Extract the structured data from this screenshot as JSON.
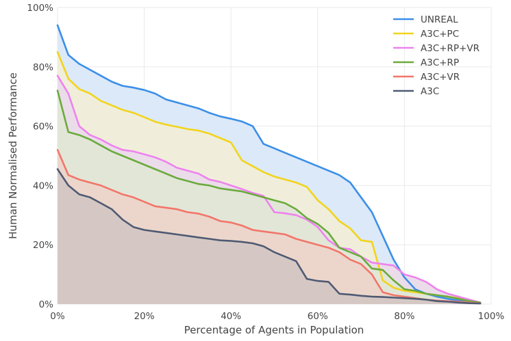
{
  "chart_data": {
    "type": "area",
    "title": "",
    "xlabel": "Percentage of Agents in Population",
    "ylabel": "Human Normalised Performance",
    "xlim": [
      0,
      100
    ],
    "ylim": [
      0,
      100
    ],
    "xticks": [
      "0%",
      "20%",
      "40%",
      "60%",
      "80%",
      "100%"
    ],
    "yticks": [
      "0%",
      "20%",
      "40%",
      "60%",
      "80%",
      "100%"
    ],
    "grid": true,
    "legend_position": "top-right",
    "series": [
      {
        "name": "UNREAL",
        "color": "#3b8ee8",
        "fill": "#dbe9f8",
        "x": [
          0,
          2.5,
          5,
          7.5,
          10,
          12.5,
          15,
          17.5,
          20,
          22.5,
          25,
          27.5,
          30,
          32.5,
          35,
          37.5,
          40,
          42.5,
          45,
          47.5,
          50,
          52.5,
          55,
          57.5,
          60,
          62.5,
          65,
          67.5,
          70,
          72.5,
          75,
          77.5,
          80,
          82.5,
          85,
          87.5,
          90,
          92.5,
          95,
          97.5
        ],
        "y": [
          94,
          84,
          81,
          79,
          77,
          75,
          73.6,
          73,
          72.2,
          71,
          69,
          68,
          67,
          66,
          64.5,
          63.3,
          62.5,
          61.6,
          60,
          54,
          52.5,
          51,
          49.5,
          48,
          46.5,
          45,
          43.5,
          41,
          36,
          31,
          23,
          15,
          9,
          5,
          3.5,
          2.5,
          1.8,
          1.2,
          0.8,
          0.5
        ]
      },
      {
        "name": "A3C+PC",
        "color": "#f2d41c",
        "fill": "#f0eeda",
        "x": [
          0,
          2.5,
          5,
          7.5,
          10,
          12.5,
          15,
          17.5,
          20,
          22.5,
          25,
          27.5,
          30,
          32.5,
          35,
          37.5,
          40,
          42.5,
          45,
          47.5,
          50,
          52.5,
          55,
          57.5,
          60,
          62.5,
          65,
          67.5,
          70,
          72.5,
          75,
          77.5,
          80,
          82.5,
          85,
          87.5,
          90,
          92.5,
          95,
          97.5
        ],
        "y": [
          85,
          76,
          72.5,
          71,
          68.5,
          67,
          65.5,
          64.5,
          63,
          61.5,
          60.5,
          59.8,
          59,
          58.5,
          57.5,
          56,
          54.5,
          48.5,
          46.5,
          44.5,
          43,
          42,
          41,
          39.5,
          35,
          32,
          28,
          25.5,
          21.5,
          21,
          8,
          5.5,
          4.5,
          4,
          3.5,
          3,
          2.5,
          2,
          1.5,
          0.5
        ]
      },
      {
        "name": "A3C+RP+VR",
        "color": "#ee82ee",
        "fill": "#ebdcea",
        "x": [
          0,
          2.5,
          5,
          7.5,
          10,
          12.5,
          15,
          17.5,
          20,
          22.5,
          25,
          27.5,
          30,
          32.5,
          35,
          37.5,
          40,
          42.5,
          45,
          47.5,
          50,
          52.5,
          55,
          57.5,
          60,
          62.5,
          65,
          67.5,
          70,
          72.5,
          75,
          77.5,
          80,
          82.5,
          85,
          87.5,
          90,
          92.5,
          95,
          97.5
        ],
        "y": [
          77,
          71,
          60,
          57,
          55.5,
          53.5,
          52,
          51.5,
          50.5,
          49.5,
          48,
          46,
          45,
          44,
          42,
          41.2,
          40,
          38.8,
          37.5,
          36.5,
          31,
          30.6,
          30,
          28.5,
          26,
          21.5,
          19,
          18.5,
          16,
          14,
          13.5,
          13,
          10,
          9,
          7.5,
          5,
          3.5,
          2.5,
          1.5,
          0.5
        ]
      },
      {
        "name": "A3C+RP",
        "color": "#6aab3c",
        "fill": "#e2e6d7",
        "x": [
          0,
          2.5,
          5,
          7.5,
          10,
          12.5,
          15,
          17.5,
          20,
          22.5,
          25,
          27.5,
          30,
          32.5,
          35,
          37.5,
          40,
          42.5,
          45,
          47.5,
          50,
          52.5,
          55,
          57.5,
          60,
          62.5,
          65,
          67.5,
          70,
          72.5,
          75,
          77.5,
          80,
          82.5,
          85,
          87.5,
          90,
          92.5,
          95,
          97.5
        ],
        "y": [
          72,
          58,
          57,
          55.5,
          53.5,
          51.5,
          50,
          48.5,
          47,
          45.5,
          44,
          42.5,
          41.5,
          40.5,
          40,
          39,
          38.5,
          38,
          37,
          36,
          35,
          34,
          32,
          29,
          27,
          24,
          19,
          17.5,
          16,
          12,
          11.5,
          8,
          5,
          4.5,
          3.5,
          3,
          2.5,
          1.8,
          1,
          0.5
        ]
      },
      {
        "name": "A3C+VR",
        "color": "#f2756a",
        "fill": "#ecd6cb",
        "x": [
          0,
          2.5,
          5,
          7.5,
          10,
          12.5,
          15,
          17.5,
          20,
          22.5,
          25,
          27.5,
          30,
          32.5,
          35,
          37.5,
          40,
          42.5,
          45,
          47.5,
          50,
          52.5,
          55,
          57.5,
          60,
          62.5,
          65,
          67.5,
          70,
          72.5,
          75,
          77.5,
          80,
          82.5,
          85,
          87.5,
          90,
          92.5,
          95,
          97.5
        ],
        "y": [
          52,
          43.5,
          42,
          41,
          40,
          38.5,
          37,
          36,
          34.5,
          33,
          32.5,
          32,
          31,
          30.5,
          29.5,
          28,
          27.5,
          26.5,
          25,
          24.5,
          24,
          23.5,
          22,
          21,
          20,
          19,
          17.5,
          15,
          13.5,
          10,
          4,
          3,
          2.5,
          2,
          1.5,
          1.2,
          1,
          0.8,
          0.5,
          0.3
        ]
      },
      {
        "name": "A3C",
        "color": "#4f5a73",
        "fill": "#d5c8c4",
        "x": [
          0,
          2.5,
          5,
          7.5,
          10,
          12.5,
          15,
          17.5,
          20,
          22.5,
          25,
          27.5,
          30,
          32.5,
          35,
          37.5,
          40,
          42.5,
          45,
          47.5,
          50,
          52.5,
          55,
          57.5,
          60,
          62.5,
          65,
          67.5,
          70,
          72.5,
          75,
          77.5,
          80,
          82.5,
          85,
          87.5,
          90,
          92.5,
          95,
          97.5
        ],
        "y": [
          45.5,
          40,
          37,
          36,
          34,
          32,
          28.5,
          26,
          25,
          24.5,
          24,
          23.5,
          23,
          22.5,
          22,
          21.5,
          21.3,
          21,
          20.5,
          19.5,
          17.5,
          16,
          14.5,
          8.5,
          7.8,
          7.5,
          3.5,
          3.2,
          2.8,
          2.5,
          2.4,
          2.2,
          2,
          1.8,
          1.5,
          1,
          0.8,
          0.5,
          0.3,
          0.2
        ]
      }
    ]
  }
}
